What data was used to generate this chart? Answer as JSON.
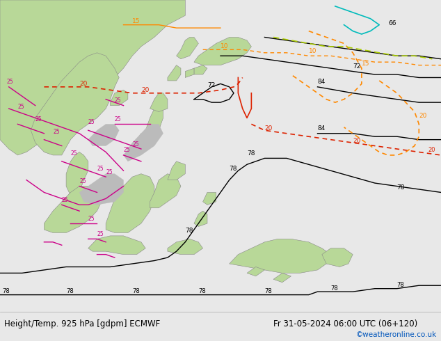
{
  "title_left": "Height/Temp. 925 hPa [gdpm] ECMWF",
  "title_right": "Fr 31-05-2024 06:00 UTC (06+120)",
  "copyright": "©weatheronline.co.uk",
  "copyright_color": "#0055bb",
  "bg_color": "#e8e8e8",
  "bottom_text_color": "#000000",
  "fig_width": 6.34,
  "fig_height": 4.9,
  "dpi": 100,
  "sea_color": "#d8d8d8",
  "land_color": "#b8d898",
  "contour_black": "#000000",
  "contour_red": "#dd2200",
  "contour_magenta": "#cc0088",
  "contour_orange": "#ff8800",
  "contour_cyan": "#00bbbb",
  "contour_green_yellow": "#aacc00"
}
